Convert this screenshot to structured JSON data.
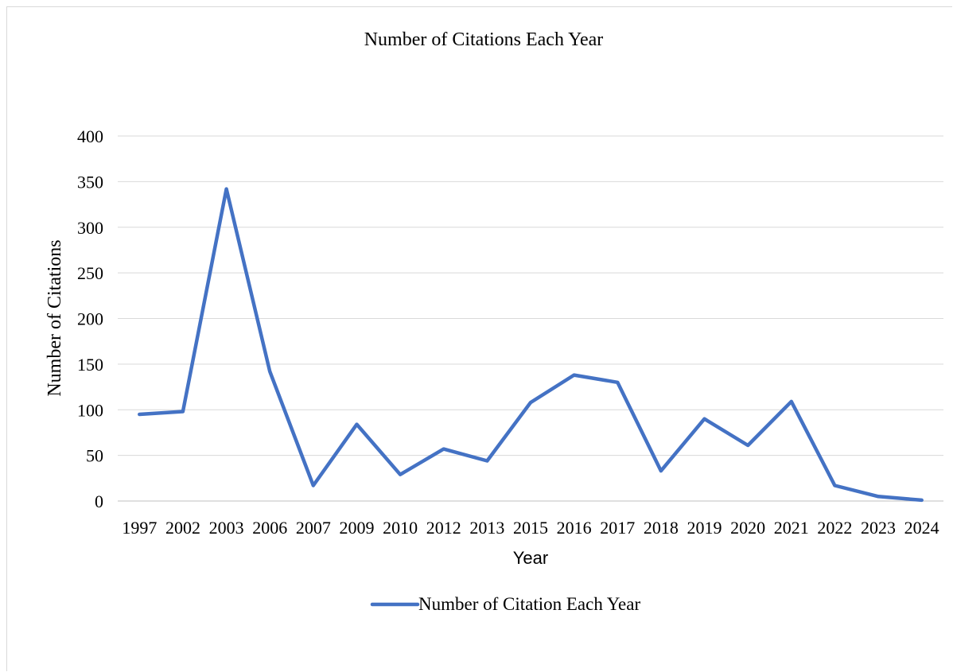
{
  "chart_data": {
    "type": "line",
    "title": "Number of Citations Each Year",
    "xlabel": "Year",
    "ylabel": "Number of Citations",
    "categories": [
      "1997",
      "2002",
      "2003",
      "2006",
      "2007",
      "2009",
      "2010",
      "2012",
      "2013",
      "2015",
      "2016",
      "2017",
      "2018",
      "2019",
      "2020",
      "2021",
      "2022",
      "2023",
      "2024"
    ],
    "series": [
      {
        "name": "Number of Citation Each Year",
        "values": [
          95,
          98,
          342,
          142,
          17,
          84,
          29,
          57,
          44,
          108,
          138,
          130,
          33,
          90,
          61,
          109,
          17,
          5,
          1
        ],
        "color": "#4472c4"
      }
    ],
    "ylim": [
      0,
      400
    ],
    "yticks": [
      0,
      50,
      100,
      150,
      200,
      250,
      300,
      350,
      400
    ],
    "grid": true,
    "legend": "bottom"
  }
}
